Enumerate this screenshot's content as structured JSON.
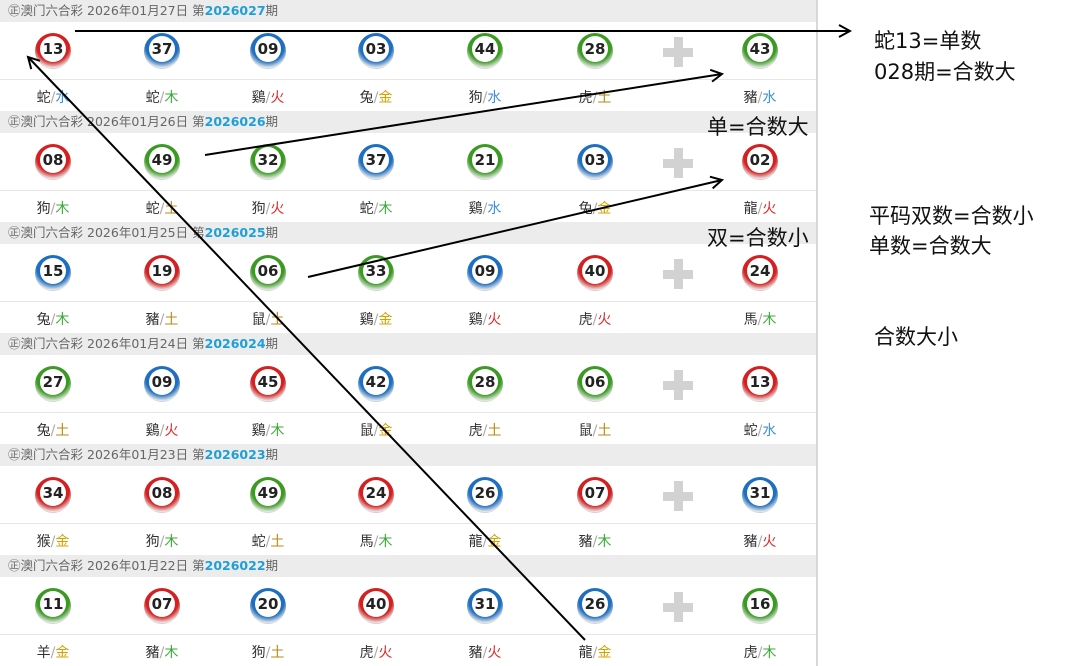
{
  "lottery_name": "澳门六合彩",
  "prefix_icon": "zheng-circle-icon",
  "colors": {
    "red": "#d42020",
    "blue": "#1f6fc0",
    "green": "#3a9a22",
    "element": {
      "金": "#d4a000",
      "木": "#3aaa35",
      "水": "#3f8fdc",
      "火": "#e02a2a",
      "土": "#b88a10"
    }
  },
  "draws": [
    {
      "date": "2026年01月27日",
      "issue_prefix": "第",
      "issue": "2026027",
      "issue_suffix": "期",
      "balls": [
        {
          "n": "13",
          "c": "red",
          "z": "蛇",
          "e": "水"
        },
        {
          "n": "37",
          "c": "blue",
          "z": "蛇",
          "e": "木"
        },
        {
          "n": "09",
          "c": "blue",
          "z": "鷄",
          "e": "火"
        },
        {
          "n": "03",
          "c": "blue",
          "z": "兔",
          "e": "金"
        },
        {
          "n": "44",
          "c": "green",
          "z": "狗",
          "e": "水"
        },
        {
          "n": "28",
          "c": "green",
          "z": "虎",
          "e": "土"
        },
        {
          "n": "43",
          "c": "green",
          "z": "豬",
          "e": "水"
        }
      ]
    },
    {
      "date": "2026年01月26日",
      "issue_prefix": "第",
      "issue": "2026026",
      "issue_suffix": "期",
      "balls": [
        {
          "n": "08",
          "c": "red",
          "z": "狗",
          "e": "木"
        },
        {
          "n": "49",
          "c": "green",
          "z": "蛇",
          "e": "土"
        },
        {
          "n": "32",
          "c": "green",
          "z": "狗",
          "e": "火"
        },
        {
          "n": "37",
          "c": "blue",
          "z": "蛇",
          "e": "木"
        },
        {
          "n": "21",
          "c": "green",
          "z": "鷄",
          "e": "水"
        },
        {
          "n": "03",
          "c": "blue",
          "z": "兔",
          "e": "金"
        },
        {
          "n": "02",
          "c": "red",
          "z": "龍",
          "e": "火"
        }
      ]
    },
    {
      "date": "2026年01月25日",
      "issue_prefix": "第",
      "issue": "2026025",
      "issue_suffix": "期",
      "balls": [
        {
          "n": "15",
          "c": "blue",
          "z": "兔",
          "e": "木"
        },
        {
          "n": "19",
          "c": "red",
          "z": "豬",
          "e": "土"
        },
        {
          "n": "06",
          "c": "green",
          "z": "鼠",
          "e": "土"
        },
        {
          "n": "33",
          "c": "green",
          "z": "鷄",
          "e": "金"
        },
        {
          "n": "09",
          "c": "blue",
          "z": "鷄",
          "e": "火"
        },
        {
          "n": "40",
          "c": "red",
          "z": "虎",
          "e": "火"
        },
        {
          "n": "24",
          "c": "red",
          "z": "馬",
          "e": "木"
        }
      ]
    },
    {
      "date": "2026年01月24日",
      "issue_prefix": "第",
      "issue": "2026024",
      "issue_suffix": "期",
      "balls": [
        {
          "n": "27",
          "c": "green",
          "z": "兔",
          "e": "土"
        },
        {
          "n": "09",
          "c": "blue",
          "z": "鷄",
          "e": "火"
        },
        {
          "n": "45",
          "c": "red",
          "z": "鷄",
          "e": "木"
        },
        {
          "n": "42",
          "c": "blue",
          "z": "鼠",
          "e": "金"
        },
        {
          "n": "28",
          "c": "green",
          "z": "虎",
          "e": "土"
        },
        {
          "n": "06",
          "c": "green",
          "z": "鼠",
          "e": "土"
        },
        {
          "n": "13",
          "c": "red",
          "z": "蛇",
          "e": "水"
        }
      ]
    },
    {
      "date": "2026年01月23日",
      "issue_prefix": "第",
      "issue": "2026023",
      "issue_suffix": "期",
      "balls": [
        {
          "n": "34",
          "c": "red",
          "z": "猴",
          "e": "金"
        },
        {
          "n": "08",
          "c": "red",
          "z": "狗",
          "e": "木"
        },
        {
          "n": "49",
          "c": "green",
          "z": "蛇",
          "e": "土"
        },
        {
          "n": "24",
          "c": "red",
          "z": "馬",
          "e": "木"
        },
        {
          "n": "26",
          "c": "blue",
          "z": "龍",
          "e": "金"
        },
        {
          "n": "07",
          "c": "red",
          "z": "豬",
          "e": "木"
        },
        {
          "n": "31",
          "c": "blue",
          "z": "豬",
          "e": "火"
        }
      ]
    },
    {
      "date": "2026年01月22日",
      "issue_prefix": "第",
      "issue": "2026022",
      "issue_suffix": "期",
      "balls": [
        {
          "n": "11",
          "c": "green",
          "z": "羊",
          "e": "金"
        },
        {
          "n": "07",
          "c": "red",
          "z": "豬",
          "e": "木"
        },
        {
          "n": "20",
          "c": "blue",
          "z": "狗",
          "e": "土"
        },
        {
          "n": "40",
          "c": "red",
          "z": "虎",
          "e": "火"
        },
        {
          "n": "31",
          "c": "blue",
          "z": "豬",
          "e": "火"
        },
        {
          "n": "26",
          "c": "blue",
          "z": "龍",
          "e": "金"
        },
        {
          "n": "16",
          "c": "green",
          "z": "虎",
          "e": "木"
        }
      ]
    }
  ],
  "annotations": {
    "a1": "蛇13=单数",
    "a2": "028期=合数大",
    "a3": "单=合数大",
    "a4": "双=合数小",
    "a5": "平码双数=合数小",
    "a6": "单数=合数大",
    "a7": "合数大小"
  }
}
